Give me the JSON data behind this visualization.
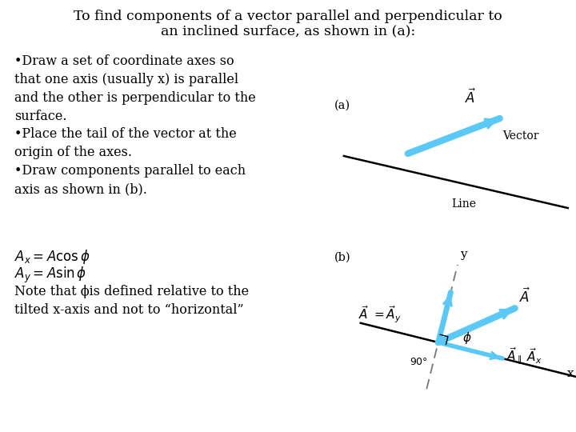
{
  "title_line1": "To find components of a vector parallel and perpendicular to",
  "title_line2": "an inclined surface, as shown in (a):",
  "background": "#ffffff",
  "text_color": "#000000",
  "arrow_color": "#5bc8f5",
  "arrow_color_dark": "#3aaad4",
  "line_color": "#000000",
  "dashed_color": "#777777",
  "label_a": "(a)",
  "label_b": "(b)",
  "vector_label": "Vector",
  "line_label": "Line",
  "x_label": "x",
  "y_label": "y"
}
